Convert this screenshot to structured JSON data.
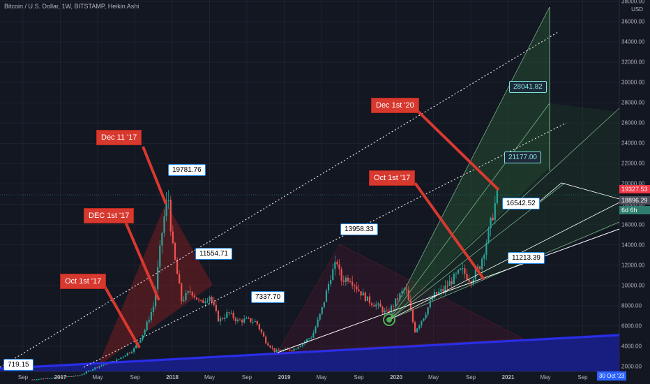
{
  "header": {
    "title": "Bitcoin / U.S. Dollar, 1W, BITSTAMP, Heikin Ashi",
    "currency": "USD"
  },
  "colors": {
    "background": "#131722",
    "up": "#26a69a",
    "down": "#ef5350",
    "trendline": "#2a2ee8",
    "label_red": "#d8392f",
    "fan_fill": "#2e6b3a",
    "dotted": "#e0e0e0"
  },
  "current_price_tags": [
    {
      "value": "19327.53",
      "color": "#f23645"
    },
    {
      "value": "18896.29",
      "color": "#4a4f5a"
    },
    {
      "value": "6d 6h",
      "color": "#2f7d6e"
    }
  ],
  "date_tag": "30 Oct '23",
  "red_labels": [
    {
      "id": "oct17a",
      "text": "Oct 1st '17"
    },
    {
      "id": "dec1a",
      "text": "DEC 1st '17"
    },
    {
      "id": "dec11",
      "text": "Dec 11 '17"
    },
    {
      "id": "oct17b",
      "text": "Oct 1st '17"
    },
    {
      "id": "dec20",
      "text": "Dec 1st '20"
    }
  ],
  "price_labels": [
    {
      "id": "p719",
      "text": "719.15"
    },
    {
      "id": "p19781",
      "text": "19781.76"
    },
    {
      "id": "p11554",
      "text": "11554.71"
    },
    {
      "id": "p7337",
      "text": "7337.70"
    },
    {
      "id": "p13958",
      "text": "13958.33"
    },
    {
      "id": "p16542",
      "text": "16542.52"
    },
    {
      "id": "p11213",
      "text": "11213.39"
    }
  ],
  "target_labels": [
    {
      "id": "t28041",
      "text": "28041.82"
    },
    {
      "id": "t21177",
      "text": "21177.00"
    }
  ],
  "chart_data": {
    "type": "candlestick",
    "series_name": "Bitcoin / U.S. Dollar, 1W, BITSTAMP, Heikin Ashi",
    "y_axis": {
      "ticks": [
        2000,
        4000,
        6000,
        8000,
        10000,
        12000,
        14000,
        16000,
        18000,
        20000,
        22000,
        24000,
        26000,
        28000,
        30000,
        32000,
        34000,
        36000,
        38000
      ],
      "tick_labels": [
        "2000.00",
        "4000.00",
        "6000.00",
        "8000.00",
        "10000.00",
        "12000.00",
        "14000.00",
        "16000.00",
        "18000.00",
        "20000.00",
        "22000.00",
        "24000.00",
        "26000.00",
        "28000.00",
        "30000.00",
        "32000.00",
        "34000.00",
        "36000.00",
        "38000.00"
      ],
      "range": [
        1700,
        38000
      ]
    },
    "x_axis": {
      "tick_labels": [
        "Sep",
        "2017",
        "May",
        "Sep",
        "2018",
        "May",
        "Sep",
        "2019",
        "May",
        "Sep",
        "2020",
        "May",
        "Sep",
        "2021",
        "May",
        "Sep"
      ],
      "tick_dates": [
        "2016-09",
        "2017-01",
        "2017-05",
        "2017-09",
        "2018-01",
        "2018-05",
        "2018-09",
        "2019-01",
        "2019-05",
        "2019-09",
        "2020-01",
        "2020-05",
        "2020-09",
        "2021-01",
        "2021-05",
        "2021-09"
      ]
    },
    "approx_weekly_close_path": [
      [
        "2016-10",
        720
      ],
      [
        "2017-01",
        960
      ],
      [
        "2017-03",
        1100
      ],
      [
        "2017-05",
        2000
      ],
      [
        "2017-07",
        2600
      ],
      [
        "2017-09",
        3800
      ],
      [
        "2017-10",
        5500
      ],
      [
        "2017-11",
        8000
      ],
      [
        "2017-12",
        16000
      ],
      [
        "2017-12-18",
        19000
      ],
      [
        "2018-01",
        14000
      ],
      [
        "2018-02",
        8500
      ],
      [
        "2018-03",
        9500
      ],
      [
        "2018-04",
        8200
      ],
      [
        "2018-05",
        9000
      ],
      [
        "2018-06",
        6500
      ],
      [
        "2018-07",
        7300
      ],
      [
        "2018-08",
        6500
      ],
      [
        "2018-09",
        6600
      ],
      [
        "2018-10",
        6400
      ],
      [
        "2018-11",
        4500
      ],
      [
        "2018-12",
        3500
      ],
      [
        "2019-02",
        3700
      ],
      [
        "2019-04",
        5000
      ],
      [
        "2019-05",
        7500
      ],
      [
        "2019-06",
        11000
      ],
      [
        "2019-06-24",
        12500
      ],
      [
        "2019-07",
        10500
      ],
      [
        "2019-08",
        10800
      ],
      [
        "2019-09",
        9500
      ],
      [
        "2019-10",
        8500
      ],
      [
        "2019-11",
        8000
      ],
      [
        "2019-12",
        7200
      ],
      [
        "2020-01",
        8500
      ],
      [
        "2020-02",
        9800
      ],
      [
        "2020-03",
        5500
      ],
      [
        "2020-04",
        7000
      ],
      [
        "2020-05",
        9000
      ],
      [
        "2020-06",
        9500
      ],
      [
        "2020-07",
        10500
      ],
      [
        "2020-08",
        11500
      ],
      [
        "2020-09",
        10500
      ],
      [
        "2020-10",
        12000
      ],
      [
        "2020-11",
        15500
      ],
      [
        "2020-11-23",
        18500
      ],
      [
        "2020-12-01",
        19300
      ]
    ]
  }
}
